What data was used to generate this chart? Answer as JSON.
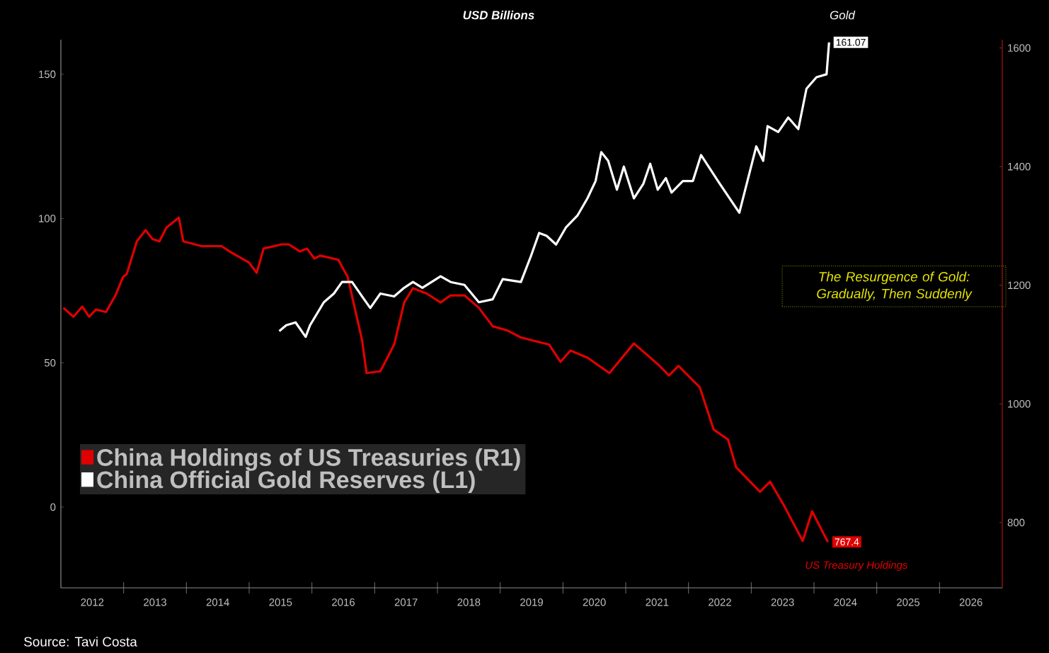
{
  "chart_data": {
    "type": "line",
    "title": "USD Billions",
    "xlim": [
      2012,
      2027
    ],
    "xticks": [
      {
        "value": 2012.5,
        "label": "2012"
      },
      {
        "value": 2013.5,
        "label": "2013"
      },
      {
        "value": 2014.5,
        "label": "2014"
      },
      {
        "value": 2015.5,
        "label": "2015"
      },
      {
        "value": 2016.5,
        "label": "2016"
      },
      {
        "value": 2017.5,
        "label": "2017"
      },
      {
        "value": 2018.5,
        "label": "2018"
      },
      {
        "value": 2019.5,
        "label": "2019"
      },
      {
        "value": 2020.5,
        "label": "2020"
      },
      {
        "value": 2021.5,
        "label": "2021"
      },
      {
        "value": 2022.5,
        "label": "2022"
      },
      {
        "value": 2023.5,
        "label": "2023"
      },
      {
        "value": 2024.5,
        "label": "2024"
      },
      {
        "value": 2025.5,
        "label": "2025"
      },
      {
        "value": 2026.5,
        "label": "2026"
      },
      {
        "value": 2013,
        "label": null
      },
      {
        "value": 2014,
        "label": null
      },
      {
        "value": 2015,
        "label": null
      },
      {
        "value": 2016,
        "label": null
      },
      {
        "value": 2017,
        "label": null
      },
      {
        "value": 2018,
        "label": null
      },
      {
        "value": 2019,
        "label": null
      },
      {
        "value": 2020,
        "label": null
      },
      {
        "value": 2021,
        "label": null
      },
      {
        "value": 2022,
        "label": null
      },
      {
        "value": 2023,
        "label": null
      },
      {
        "value": 2024,
        "label": null
      },
      {
        "value": 2025,
        "label": null
      },
      {
        "value": 2026,
        "label": null
      }
    ],
    "ylim": [
      -28,
      162
    ],
    "yticks": [
      0,
      50,
      100,
      150
    ],
    "y2lim": [
      690,
      1614
    ],
    "y2ticks": [
      800,
      1000,
      1200,
      1400,
      1600
    ],
    "legend": "bottom left",
    "series": [
      {
        "name": "China Holdings of US Treasuries (R1)",
        "color": "#e00000",
        "axis": "y2",
        "x": [
          2012.04,
          2012.2,
          2012.34,
          2012.45,
          2012.56,
          2012.72,
          2012.87,
          2012.99,
          2013.05,
          2013.21,
          2013.35,
          2013.46,
          2013.57,
          2013.68,
          2013.88,
          2013.95,
          2014.24,
          2014.56,
          2014.69,
          2015.0,
          2015.12,
          2015.23,
          2015.52,
          2015.63,
          2015.81,
          2015.92,
          2016.04,
          2016.13,
          2016.42,
          2016.57,
          2016.8,
          2016.87,
          2017.09,
          2017.31,
          2017.47,
          2017.61,
          2017.83,
          2018.05,
          2018.21,
          2018.43,
          2018.66,
          2018.88,
          2019.11,
          2019.33,
          2019.78,
          2019.96,
          2020.12,
          2020.39,
          2020.74,
          2021.13,
          2021.51,
          2021.69,
          2021.84,
          2022.18,
          2022.4,
          2022.63,
          2022.76,
          2023.14,
          2023.3,
          2023.52,
          2023.82,
          2023.97,
          2024.22
        ],
        "values": [
          1162,
          1147,
          1164,
          1147,
          1159,
          1155,
          1183,
          1214,
          1219,
          1274,
          1293,
          1278,
          1274,
          1297,
          1314,
          1274,
          1266,
          1266,
          1257,
          1238,
          1221,
          1262,
          1269,
          1269,
          1257,
          1262,
          1245,
          1250,
          1243,
          1214,
          1107,
          1052,
          1055,
          1100,
          1171,
          1195,
          1186,
          1171,
          1183,
          1183,
          1162,
          1131,
          1124,
          1112,
          1100,
          1071,
          1090,
          1078,
          1052,
          1102,
          1067,
          1048,
          1064,
          1028,
          957,
          940,
          893,
          852,
          869,
          829,
          769,
          819,
          767.4
        ],
        "value_labels": [
          null,
          null,
          null,
          null,
          null,
          null,
          null,
          null,
          null,
          null,
          null,
          null,
          null,
          null,
          null,
          null,
          null,
          null,
          null,
          null,
          null,
          null,
          null,
          null,
          null,
          null,
          null,
          null,
          null,
          null,
          null,
          null,
          null,
          null,
          null,
          null,
          null,
          null,
          null,
          null,
          null,
          null,
          null,
          null,
          null,
          null,
          null,
          null,
          null,
          null,
          null,
          null,
          null,
          null,
          null,
          null,
          null,
          null,
          null,
          null,
          null,
          null,
          "767.4"
        ]
      },
      {
        "name": "China Official Gold Reserves (L1)",
        "color": "#ffffff",
        "x": [
          2015.48,
          2015.59,
          2015.74,
          2015.9,
          2015.97,
          2016.19,
          2016.35,
          2016.48,
          2016.64,
          2016.8,
          2016.93,
          2017.09,
          2017.31,
          2017.47,
          2017.61,
          2017.76,
          2018.05,
          2018.21,
          2018.43,
          2018.66,
          2018.88,
          2019.04,
          2019.33,
          2019.49,
          2019.62,
          2019.74,
          2019.89,
          2020.05,
          2020.23,
          2020.39,
          2020.52,
          2020.61,
          2020.72,
          2020.86,
          2020.97,
          2021.13,
          2021.28,
          2021.39,
          2021.51,
          2021.64,
          2021.73,
          2021.91,
          2022.07,
          2022.2,
          2022.47,
          2022.81,
          2023.08,
          2023.19,
          2023.26,
          2023.43,
          2023.59,
          2023.75,
          2023.88,
          2024.04,
          2024.2,
          2024.24
        ],
        "values": [
          61,
          63,
          64,
          59,
          63,
          71,
          74,
          78,
          78,
          73,
          69,
          74,
          73,
          76,
          78,
          76,
          80,
          78,
          77,
          71,
          72,
          79,
          78,
          87,
          95,
          94,
          91,
          97,
          101,
          107,
          113,
          123,
          120,
          110,
          118,
          107,
          112,
          119,
          110,
          114,
          109,
          113,
          113,
          122,
          113,
          102,
          125,
          120,
          132,
          130,
          135,
          131,
          145,
          149,
          150,
          161.07
        ],
        "value_labels": [
          null,
          null,
          null,
          null,
          null,
          null,
          null,
          null,
          null,
          null,
          null,
          null,
          null,
          null,
          null,
          null,
          null,
          null,
          null,
          null,
          null,
          null,
          null,
          null,
          null,
          null,
          null,
          null,
          null,
          null,
          null,
          null,
          null,
          null,
          null,
          null,
          null,
          null,
          null,
          null,
          null,
          null,
          null,
          null,
          null,
          null,
          null,
          null,
          null,
          null,
          null,
          null,
          null,
          null,
          null,
          "161.07"
        ]
      }
    ],
    "annotations": [
      "Gold",
      "The Resurgence of Gold: Gradually, Then Suddenly",
      "US Treasury Holdings",
      "Source: Tavi Costa"
    ]
  }
}
